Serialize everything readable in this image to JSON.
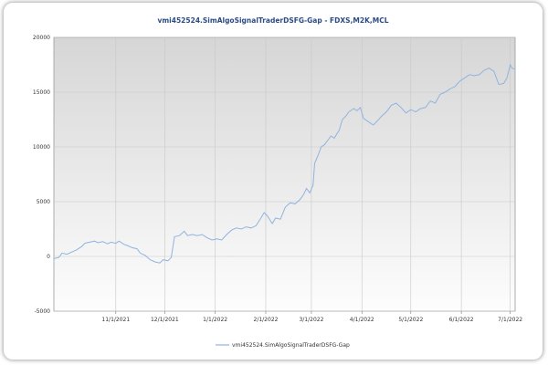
{
  "chart_data": {
    "type": "line",
    "title": "vmi452524.SimAlgoSignalTraderDSFG-Gap - FDXS,M2K,MCL",
    "xlabel": "",
    "ylabel": "",
    "ylim": [
      -5000,
      20000
    ],
    "yticks": [
      "20000",
      "15000",
      "10000",
      "5000",
      "0",
      "-5000"
    ],
    "yticks_values": [
      20000,
      15000,
      10000,
      5000,
      0,
      -5000
    ],
    "xlim": [
      "2021-09-24",
      "2022-07-04"
    ],
    "xticks": [
      "11/1/2021",
      "12/1/2021",
      "1/1/2022",
      "2/1/2022",
      "3/1/2022",
      "4/1/2022",
      "5/1/2022",
      "6/1/2022",
      "7/1/2022"
    ],
    "xticks_dates": [
      "2021-11-01",
      "2021-12-01",
      "2022-01-01",
      "2022-02-01",
      "2022-03-01",
      "2022-04-01",
      "2022-05-01",
      "2022-06-01",
      "2022-07-01"
    ],
    "grid": true,
    "legend_position": "bottom",
    "colors": {
      "line": "#8fb4e0",
      "background_top": "#d8d8d8",
      "background_bottom": "#fdfdfd",
      "grid": "#c8c8c8",
      "title": "#2b4b88"
    },
    "series": [
      {
        "name": "vmi452524.SimAlgoSignalTraderDSFG-Gap",
        "points": [
          [
            "2021-09-24",
            -200
          ],
          [
            "2021-09-27",
            -100
          ],
          [
            "2021-09-29",
            300
          ],
          [
            "2021-10-02",
            200
          ],
          [
            "2021-10-05",
            400
          ],
          [
            "2021-10-08",
            600
          ],
          [
            "2021-10-11",
            900
          ],
          [
            "2021-10-13",
            1200
          ],
          [
            "2021-10-16",
            1300
          ],
          [
            "2021-10-19",
            1400
          ],
          [
            "2021-10-21",
            1250
          ],
          [
            "2021-10-24",
            1350
          ],
          [
            "2021-10-27",
            1150
          ],
          [
            "2021-10-29",
            1300
          ],
          [
            "2021-11-01",
            1200
          ],
          [
            "2021-11-03",
            1400
          ],
          [
            "2021-11-06",
            1100
          ],
          [
            "2021-11-08",
            1000
          ],
          [
            "2021-11-11",
            800
          ],
          [
            "2021-11-14",
            700
          ],
          [
            "2021-11-16",
            300
          ],
          [
            "2021-11-19",
            100
          ],
          [
            "2021-11-22",
            -300
          ],
          [
            "2021-11-25",
            -500
          ],
          [
            "2021-11-28",
            -600
          ],
          [
            "2021-11-30",
            -300
          ],
          [
            "2021-12-03",
            -400
          ],
          [
            "2021-12-05",
            -100
          ],
          [
            "2021-12-07",
            1800
          ],
          [
            "2021-12-10",
            1900
          ],
          [
            "2021-12-13",
            2300
          ],
          [
            "2021-12-15",
            1900
          ],
          [
            "2021-12-18",
            2000
          ],
          [
            "2021-12-21",
            1900
          ],
          [
            "2021-12-24",
            2000
          ],
          [
            "2021-12-27",
            1700
          ],
          [
            "2021-12-30",
            1500
          ],
          [
            "2022-01-02",
            1600
          ],
          [
            "2022-01-05",
            1500
          ],
          [
            "2022-01-08",
            2000
          ],
          [
            "2022-01-11",
            2400
          ],
          [
            "2022-01-14",
            2600
          ],
          [
            "2022-01-17",
            2500
          ],
          [
            "2022-01-20",
            2700
          ],
          [
            "2022-01-23",
            2600
          ],
          [
            "2022-01-26",
            2800
          ],
          [
            "2022-01-29",
            3500
          ],
          [
            "2022-01-31",
            4000
          ],
          [
            "2022-02-02",
            3700
          ],
          [
            "2022-02-05",
            3000
          ],
          [
            "2022-02-07",
            3500
          ],
          [
            "2022-02-10",
            3400
          ],
          [
            "2022-02-13",
            4500
          ],
          [
            "2022-02-16",
            4900
          ],
          [
            "2022-02-19",
            4800
          ],
          [
            "2022-02-22",
            5200
          ],
          [
            "2022-02-24",
            5600
          ],
          [
            "2022-02-26",
            6200
          ],
          [
            "2022-02-28",
            5800
          ],
          [
            "2022-03-02",
            6500
          ],
          [
            "2022-03-03",
            8500
          ],
          [
            "2022-03-05",
            9200
          ],
          [
            "2022-03-07",
            10000
          ],
          [
            "2022-03-09",
            10200
          ],
          [
            "2022-03-11",
            10600
          ],
          [
            "2022-03-13",
            11000
          ],
          [
            "2022-03-15",
            10800
          ],
          [
            "2022-03-18",
            11500
          ],
          [
            "2022-03-20",
            12500
          ],
          [
            "2022-03-22",
            12800
          ],
          [
            "2022-03-24",
            13200
          ],
          [
            "2022-03-27",
            13500
          ],
          [
            "2022-03-29",
            13300
          ],
          [
            "2022-03-31",
            13600
          ],
          [
            "2022-04-02",
            12600
          ],
          [
            "2022-04-05",
            12300
          ],
          [
            "2022-04-08",
            12000
          ],
          [
            "2022-04-10",
            12300
          ],
          [
            "2022-04-13",
            12800
          ],
          [
            "2022-04-16",
            13200
          ],
          [
            "2022-04-19",
            13800
          ],
          [
            "2022-04-22",
            14000
          ],
          [
            "2022-04-25",
            13600
          ],
          [
            "2022-04-28",
            13100
          ],
          [
            "2022-05-01",
            13400
          ],
          [
            "2022-05-04",
            13200
          ],
          [
            "2022-05-07",
            13500
          ],
          [
            "2022-05-10",
            13600
          ],
          [
            "2022-05-13",
            14200
          ],
          [
            "2022-05-16",
            14000
          ],
          [
            "2022-05-19",
            14800
          ],
          [
            "2022-05-22",
            15000
          ],
          [
            "2022-05-25",
            15300
          ],
          [
            "2022-05-28",
            15500
          ],
          [
            "2022-05-31",
            16000
          ],
          [
            "2022-06-03",
            16300
          ],
          [
            "2022-06-06",
            16600
          ],
          [
            "2022-06-09",
            16500
          ],
          [
            "2022-06-12",
            16600
          ],
          [
            "2022-06-15",
            17000
          ],
          [
            "2022-06-18",
            17200
          ],
          [
            "2022-06-21",
            16900
          ],
          [
            "2022-06-24",
            15700
          ],
          [
            "2022-06-27",
            15800
          ],
          [
            "2022-06-29",
            16300
          ],
          [
            "2022-07-01",
            17500
          ],
          [
            "2022-07-02",
            17200
          ],
          [
            "2022-07-04",
            17100
          ]
        ]
      }
    ]
  }
}
